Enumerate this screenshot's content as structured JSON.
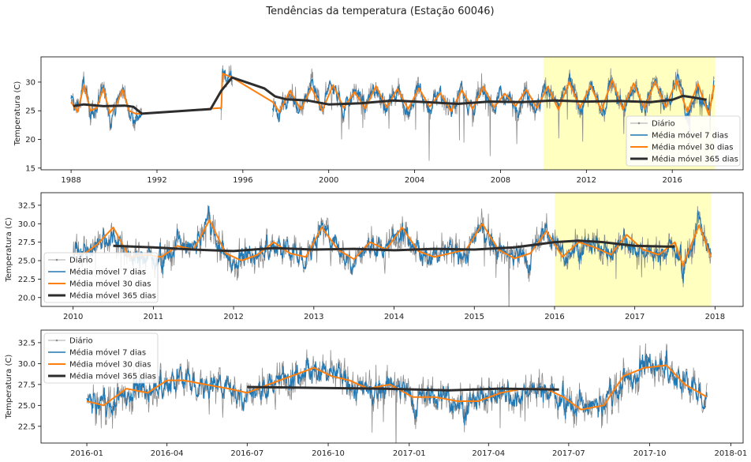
{
  "figure": {
    "title": "Tendências da temperatura (Estação 60046)"
  },
  "legend_labels": {
    "daily": "Diário",
    "ma7": "Média móvel 7 dias",
    "ma30": "Média móvel 30 dias",
    "ma365": "Média móvel 365 dias"
  },
  "colors": {
    "daily": "#8c8c8c",
    "ma7": "#1f77b4",
    "ma30": "#ff7f0e",
    "ma365": "#2d2d2d",
    "highlight": "#ffffbf"
  },
  "chart_data": [
    {
      "type": "line",
      "panel": "top",
      "ylabel": "Temperatura (C)",
      "xlim": [
        1986.6,
        2019.3
      ],
      "ylim": [
        14.7,
        34.4
      ],
      "xticks": [
        1988,
        1992,
        1996,
        2000,
        2004,
        2008,
        2012,
        2016
      ],
      "xtick_labels": [
        "1988",
        "1992",
        "1996",
        "2000",
        "2004",
        "2008",
        "2012",
        "2016"
      ],
      "yticks": [
        15,
        20,
        25,
        30
      ],
      "ytick_labels": [
        "15",
        "20",
        "25",
        "30"
      ],
      "highlight": [
        2010.0,
        2018.0
      ],
      "legend_position": "lower-right",
      "series": [
        {
          "key": "ma365",
          "x": [
            1988.1,
            1988.6,
            1989.5,
            1990.5,
            1990.9,
            1991.3,
            1994.5,
            1995.0,
            1995.5,
            1997.0,
            1997.5,
            1998.0,
            1999.0,
            2000.0,
            2001.5,
            2003.0,
            2004.5,
            2006.0,
            2007.5,
            2009.0,
            2010.5,
            2012.0,
            2013.5,
            2015.0,
            2016.0,
            2016.5,
            2017.0,
            2017.6
          ],
          "y": [
            25.8,
            26.1,
            25.8,
            25.9,
            25.7,
            24.5,
            25.3,
            28.5,
            30.8,
            28.9,
            27.5,
            27.0,
            26.8,
            26.1,
            26.3,
            26.8,
            26.5,
            26.2,
            26.6,
            26.5,
            26.8,
            26.6,
            26.7,
            26.5,
            26.9,
            27.6,
            27.3,
            26.9
          ]
        },
        {
          "key": "ma30",
          "x": [
            1988.0,
            1988.3,
            1988.6,
            1988.9,
            1989.2,
            1989.5,
            1989.8,
            1990.1,
            1990.4,
            1990.7,
            1991.0,
            1991.3,
            1995.0,
            1995.05,
            1995.5,
            1997.4,
            1997.7,
            1998.2,
            1998.7,
            1999.2,
            1999.7,
            2000.2,
            2000.7,
            2001.2,
            2001.7,
            2002.2,
            2002.7,
            2003.2,
            2003.7,
            2004.2,
            2004.7,
            2005.2,
            2005.7,
            2006.2,
            2006.7,
            2007.2,
            2007.7,
            2008.2,
            2008.7,
            2009.2,
            2009.7,
            2010.2,
            2010.7,
            2011.2,
            2011.7,
            2012.2,
            2012.7,
            2013.2,
            2013.7,
            2014.2,
            2014.7,
            2015.2,
            2015.7,
            2016.2,
            2016.7,
            2017.2,
            2017.7,
            2017.95
          ],
          "y": [
            26.5,
            24.8,
            29.5,
            25.0,
            25.5,
            28.9,
            24.6,
            26.0,
            28.7,
            25.0,
            24.5,
            24.5,
            25.5,
            31.5,
            30.8,
            26.5,
            24.8,
            28.5,
            25.2,
            29.0,
            25.0,
            29.5,
            25.5,
            28.3,
            25.4,
            29.3,
            25.6,
            28.8,
            25.3,
            28.9,
            25.7,
            28.1,
            24.9,
            28.6,
            25.3,
            29.2,
            25.6,
            28.0,
            25.8,
            28.7,
            25.5,
            29.2,
            25.2,
            30.0,
            25.5,
            29.4,
            25.0,
            30.4,
            25.2,
            29.8,
            25.4,
            30.1,
            25.6,
            30.3,
            24.8,
            29.7,
            24.3,
            29.5
          ]
        }
      ]
    },
    {
      "type": "line",
      "panel": "middle",
      "ylabel": "Temperatura (C)",
      "xlim": [
        2009.6,
        2018.35
      ],
      "ylim": [
        18.8,
        34.2
      ],
      "xticks": [
        2010,
        2011,
        2012,
        2013,
        2014,
        2015,
        2016,
        2017,
        2018
      ],
      "xtick_labels": [
        "2010",
        "2011",
        "2012",
        "2013",
        "2014",
        "2015",
        "2016",
        "2017",
        "2018"
      ],
      "yticks": [
        20.0,
        22.5,
        25.0,
        27.5,
        30.0,
        32.5
      ],
      "ytick_labels": [
        "20.0",
        "22.5",
        "25.0",
        "27.5",
        "30.0",
        "32.5"
      ],
      "highlight": [
        2016.0,
        2017.95
      ],
      "legend_position": "lower-left",
      "series": [
        {
          "key": "ma365",
          "x": [
            2010.5,
            2011.0,
            2011.5,
            2012.0,
            2012.5,
            2013.0,
            2013.5,
            2014.0,
            2014.5,
            2015.0,
            2015.5,
            2016.0,
            2016.3,
            2016.6,
            2017.0,
            2017.4,
            2017.5
          ],
          "y": [
            27.0,
            26.8,
            26.5,
            26.3,
            26.7,
            26.5,
            26.6,
            26.4,
            26.6,
            26.5,
            26.8,
            27.5,
            27.7,
            27.5,
            27.0,
            26.9,
            26.9
          ]
        },
        {
          "key": "ma30",
          "x": [
            2010.0,
            2010.15,
            2010.3,
            2010.5,
            2010.7,
            2010.9,
            2011.1,
            2011.3,
            2011.5,
            2011.7,
            2011.9,
            2012.1,
            2012.3,
            2012.5,
            2012.7,
            2012.9,
            2013.1,
            2013.3,
            2013.5,
            2013.7,
            2013.9,
            2014.1,
            2014.3,
            2014.5,
            2014.7,
            2014.9,
            2015.1,
            2015.3,
            2015.5,
            2015.7,
            2015.9,
            2016.1,
            2016.3,
            2016.5,
            2016.7,
            2016.9,
            2017.1,
            2017.3,
            2017.5,
            2017.6,
            2017.8,
            2017.95
          ],
          "y": [
            26.0,
            26.0,
            27.2,
            29.5,
            25.5,
            25.8,
            25.5,
            27.0,
            26.5,
            30.5,
            26.0,
            25.0,
            25.8,
            27.5,
            26.0,
            25.5,
            29.5,
            26.5,
            25.2,
            27.5,
            26.5,
            29.5,
            26.3,
            25.5,
            26.0,
            26.5,
            30.0,
            26.5,
            25.3,
            26.0,
            29.0,
            25.5,
            27.5,
            26.8,
            25.8,
            28.5,
            26.5,
            25.8,
            27.5,
            24.3,
            29.8,
            25.5
          ]
        }
      ]
    },
    {
      "type": "line",
      "panel": "bottom",
      "ylabel": "Temperatura (C)",
      "xlim": [
        "2015-11-10",
        "2018-01-15"
      ],
      "ylim": [
        20.5,
        34.0
      ],
      "xticks": [
        "2016-01-01",
        "2016-04-01",
        "2016-07-01",
        "2016-10-01",
        "2017-01-01",
        "2017-04-01",
        "2017-07-01",
        "2017-10-01",
        "2018-01-01"
      ],
      "xtick_labels": [
        "2016-01",
        "2016-04",
        "2016-07",
        "2016-10",
        "2017-01",
        "2017-04",
        "2017-07",
        "2017-10",
        "2018-01"
      ],
      "yticks": [
        22.5,
        25.0,
        27.5,
        30.0,
        32.5
      ],
      "ytick_labels": [
        "22.5",
        "25.0",
        "27.5",
        "30.0",
        "32.5"
      ],
      "legend_position": "upper-left",
      "series": [
        {
          "key": "ma365",
          "x": [
            "2016-07-01",
            "2016-09-15",
            "2016-12-01",
            "2017-02-15",
            "2017-04-15",
            "2017-06-20"
          ],
          "y": [
            27.2,
            27.1,
            27.0,
            26.8,
            27.0,
            26.9
          ]
        },
        {
          "key": "ma30",
          "x": [
            "2016-01-01",
            "2016-01-20",
            "2016-02-15",
            "2016-03-10",
            "2016-04-01",
            "2016-04-20",
            "2016-05-15",
            "2016-06-10",
            "2016-07-01",
            "2016-07-25",
            "2016-08-20",
            "2016-09-15",
            "2016-10-05",
            "2016-10-25",
            "2016-11-15",
            "2016-12-10",
            "2017-01-05",
            "2017-01-30",
            "2017-02-25",
            "2017-03-20",
            "2017-04-15",
            "2017-05-10",
            "2017-06-05",
            "2017-06-25",
            "2017-07-15",
            "2017-08-10",
            "2017-09-01",
            "2017-09-25",
            "2017-10-20",
            "2017-11-10",
            "2017-12-05"
          ],
          "y": [
            25.5,
            25.0,
            27.0,
            26.5,
            28.0,
            28.0,
            27.5,
            27.0,
            26.5,
            27.5,
            28.5,
            29.5,
            28.5,
            28.0,
            27.0,
            27.5,
            26.0,
            26.0,
            25.5,
            25.5,
            26.5,
            27.0,
            27.0,
            26.0,
            24.5,
            25.0,
            28.5,
            29.5,
            29.8,
            27.5,
            26.0
          ]
        }
      ]
    }
  ]
}
